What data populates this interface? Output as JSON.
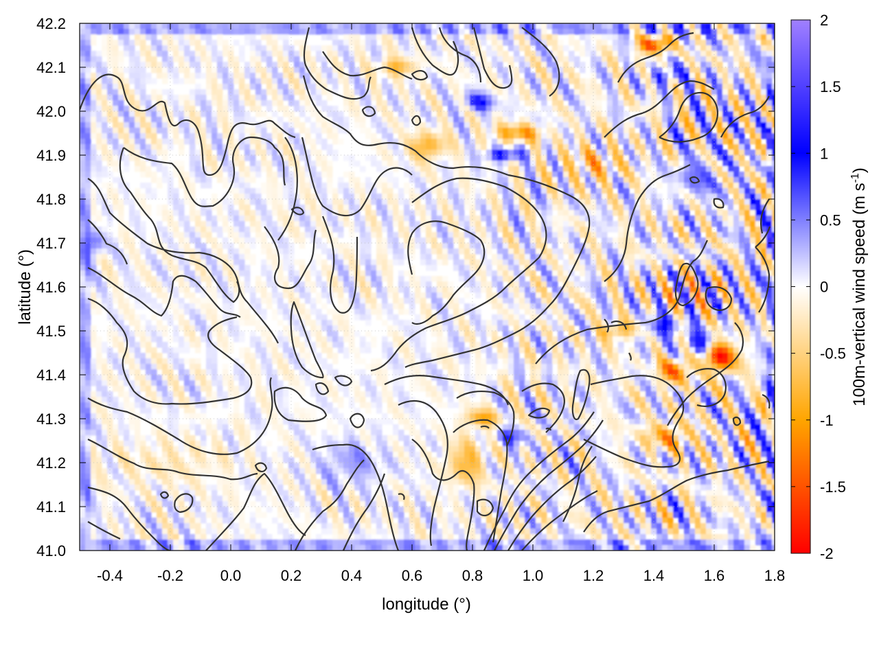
{
  "chart_data": {
    "type": "heatmap",
    "title": "",
    "xlabel": "longitude (°)",
    "ylabel": "latitude (°)",
    "colorbar_label_main": "100m-vertical wind speed (m s",
    "colorbar_label_sup": "-1",
    "colorbar_label_close": ")",
    "xlim": [
      -0.5,
      1.8
    ],
    "ylim": [
      41.0,
      42.2
    ],
    "clim": [
      -2,
      2
    ],
    "x_ticks": [
      -0.4,
      -0.2,
      0.0,
      0.2,
      0.4,
      0.6,
      0.8,
      1.0,
      1.2,
      1.4,
      1.6,
      1.8
    ],
    "x_tick_labels": [
      "-0.4",
      "-0.2",
      "0.0",
      "0.2",
      "0.4",
      "0.6",
      "0.8",
      "1.0",
      "1.2",
      "1.4",
      "1.6",
      "1.8"
    ],
    "y_ticks": [
      41.0,
      41.1,
      41.2,
      41.3,
      41.4,
      41.5,
      41.6,
      41.7,
      41.8,
      41.9,
      42.0,
      42.1,
      42.2
    ],
    "y_tick_labels": [
      "41.0",
      "41.1",
      "41.2",
      "41.3",
      "41.4",
      "41.5",
      "41.6",
      "41.7",
      "41.8",
      "41.9",
      "42.0",
      "42.1",
      "42.2"
    ],
    "colorbar_ticks": [
      -2,
      -1.5,
      -1,
      -0.5,
      0,
      0.5,
      1,
      1.5,
      2
    ],
    "colorbar_tick_labels": [
      "-2",
      "-1.5",
      "-1",
      "-0.5",
      "0",
      "0.5",
      "1",
      "1.5",
      "2"
    ],
    "colormap": [
      {
        "value": -2,
        "color": "#ff0000"
      },
      {
        "value": -1,
        "color": "#ffa500"
      },
      {
        "value": 0,
        "color": "#ffffff"
      },
      {
        "value": 1,
        "color": "#0000ff"
      },
      {
        "value": 2,
        "color": "#a080ff"
      }
    ],
    "grid": true,
    "contour_color": "#333333",
    "hotspots": [
      {
        "lon": 1.62,
        "lat": 41.44,
        "value": -1.9,
        "sx": 0.05,
        "sy": 0.035
      },
      {
        "lon": 1.55,
        "lat": 41.47,
        "value": 1.0,
        "sx": 0.05,
        "sy": 0.025
      },
      {
        "lon": 1.47,
        "lat": 41.41,
        "value": -1.3,
        "sx": 0.05,
        "sy": 0.03
      },
      {
        "lon": 1.43,
        "lat": 41.51,
        "value": 0.8,
        "sx": 0.06,
        "sy": 0.025
      },
      {
        "lon": 1.4,
        "lat": 42.15,
        "value": -1.6,
        "sx": 0.05,
        "sy": 0.02
      },
      {
        "lon": 1.45,
        "lat": 42.08,
        "value": 0.8,
        "sx": 0.06,
        "sy": 0.02
      },
      {
        "lon": 0.9,
        "lat": 41.9,
        "value": 1.0,
        "sx": 0.06,
        "sy": 0.015
      },
      {
        "lon": 0.95,
        "lat": 41.95,
        "value": -1.0,
        "sx": 0.08,
        "sy": 0.02
      },
      {
        "lon": 0.82,
        "lat": 42.02,
        "value": 0.9,
        "sx": 0.05,
        "sy": 0.02
      },
      {
        "lon": 0.65,
        "lat": 41.92,
        "value": -0.9,
        "sx": 0.06,
        "sy": 0.03
      },
      {
        "lon": 0.55,
        "lat": 42.1,
        "value": -0.8,
        "sx": 0.06,
        "sy": 0.02
      },
      {
        "lon": 1.2,
        "lat": 41.88,
        "value": -0.6,
        "sx": 0.1,
        "sy": 0.04
      },
      {
        "lon": 1.55,
        "lat": 41.85,
        "value": 0.5,
        "sx": 0.08,
        "sy": 0.05
      },
      {
        "lon": 1.28,
        "lat": 41.5,
        "value": -0.9,
        "sx": 0.06,
        "sy": 0.02
      },
      {
        "lon": 0.83,
        "lat": 41.3,
        "value": -0.9,
        "sx": 0.06,
        "sy": 0.02
      },
      {
        "lon": 0.78,
        "lat": 41.2,
        "value": -0.8,
        "sx": 0.06,
        "sy": 0.05
      },
      {
        "lon": 0.93,
        "lat": 41.26,
        "value": 0.7,
        "sx": 0.05,
        "sy": 0.02
      },
      {
        "lon": 1.45,
        "lat": 41.26,
        "value": -0.9,
        "sx": 0.08,
        "sy": 0.03
      },
      {
        "lon": -0.45,
        "lat": 41.7,
        "value": 0.6,
        "sx": 0.03,
        "sy": 0.03
      },
      {
        "lon": 0.4,
        "lat": 41.2,
        "value": 0.4,
        "sx": 0.1,
        "sy": 0.05
      },
      {
        "lon": -0.2,
        "lat": 41.2,
        "value": -0.25,
        "sx": 0.2,
        "sy": 0.05
      }
    ]
  }
}
